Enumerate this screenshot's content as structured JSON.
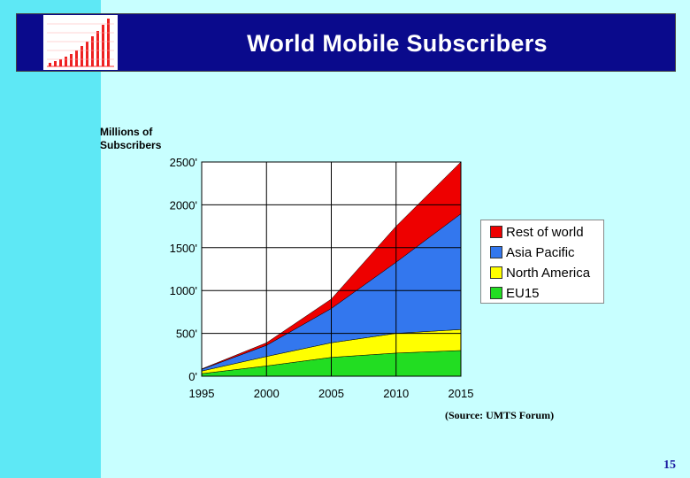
{
  "header": {
    "title": "World Mobile Subscribers"
  },
  "chart_data": {
    "type": "area",
    "title": "World Mobile Subscribers",
    "ylabel": "Millions of\nSubscribers",
    "xlabel": "",
    "x": [
      1995,
      2000,
      2005,
      2010,
      2015
    ],
    "x_tick_labels": [
      "1995",
      "2000",
      "2005",
      "2010",
      "2015"
    ],
    "y_tick_labels": [
      "0'",
      "500'",
      "1000'",
      "1500'",
      "2000'",
      "2500'"
    ],
    "ylim": [
      0,
      2500
    ],
    "xlim": [
      1995,
      2015
    ],
    "stacked": true,
    "grid": true,
    "legend_position": "right",
    "series": [
      {
        "name": "EU15",
        "color": "#22dd22",
        "values": [
          30,
          120,
          220,
          270,
          300
        ]
      },
      {
        "name": "North America",
        "color": "#ffff00",
        "values": [
          30,
          110,
          170,
          230,
          245
        ]
      },
      {
        "name": "Asia Pacific",
        "color": "#3377ee",
        "values": [
          20,
          130,
          400,
          830,
          1350
        ]
      },
      {
        "name": "Rest of world",
        "color": "#ee0000",
        "values": [
          5,
          30,
          110,
          420,
          605
        ]
      }
    ],
    "legend_order": [
      "Rest of world",
      "Asia Pacific",
      "North America",
      "EU15"
    ],
    "annotation": "(Source: UMTS Forum)"
  },
  "footer": {
    "page_number": "15"
  }
}
